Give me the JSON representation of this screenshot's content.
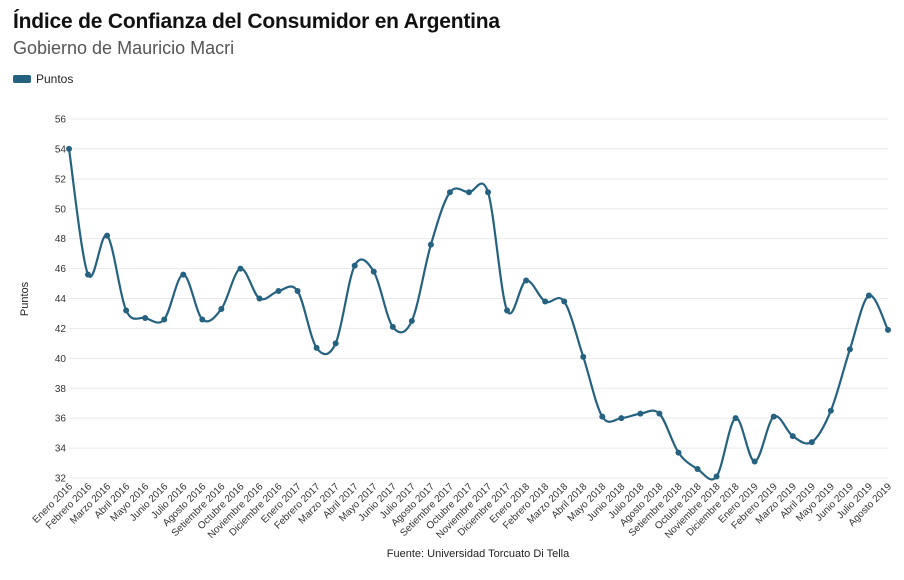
{
  "header": {
    "title": "Índice de Confianza del Consumidor en Argentina",
    "subtitle": "Gobierno de Mauricio Macri"
  },
  "legend": {
    "label": "Puntos",
    "placement": "top-left"
  },
  "footer": {
    "source": "Fuente: Universidad Torcuato Di Tella"
  },
  "colors": {
    "series": "#25627f",
    "grid": "#e9e9e9"
  },
  "chart_data": {
    "type": "line",
    "title": "Índice de Confianza del Consumidor en Argentina",
    "subtitle": "Gobierno de Mauricio Macri",
    "ylabel": "Puntos",
    "xlabel": "",
    "ylim": [
      32,
      56
    ],
    "yticks": [
      32,
      34,
      36,
      38,
      40,
      42,
      44,
      46,
      48,
      50,
      52,
      54,
      56
    ],
    "grid": true,
    "categories": [
      "Enero 2016",
      "Febrero 2016",
      "Marzo 2016",
      "Abril 2016",
      "Mayo 2016",
      "Junio 2016",
      "Julio 2016",
      "Agosto 2016",
      "Setiembre 2016",
      "Octubre 2016",
      "Noviembre 2016",
      "Diciembre 2016",
      "Enero 2017",
      "Febrero 2017",
      "Marzo 2017",
      "Abril 2017",
      "Mayo 2017",
      "Junio 2017",
      "Julio 2017",
      "Agosto 2017",
      "Setiembre 2017",
      "Octubre 2017",
      "Noviembre 2017",
      "Diciembre 2017",
      "Enero 2018",
      "Febrero 2018",
      "Marzo 2018",
      "Abril 2018",
      "Mayo 2018",
      "Junio 2018",
      "Julio 2018",
      "Agosto 2018",
      "Setiembre 2018",
      "Octubre 2018",
      "Noviembre 2018",
      "Diciembre 2018",
      "Enero 2019",
      "Febrero 2019",
      "Marzo 2019",
      "Abril 2019",
      "Mayo 2019",
      "Junio 2019",
      "Julio 2019",
      "Agosto 2019"
    ],
    "series": [
      {
        "name": "Puntos",
        "values": [
          54.0,
          45.6,
          48.2,
          43.2,
          42.7,
          42.6,
          45.6,
          42.6,
          43.3,
          46.0,
          44.0,
          44.5,
          44.5,
          40.7,
          41.0,
          46.2,
          45.8,
          42.1,
          42.5,
          47.6,
          51.1,
          51.1,
          51.1,
          43.2,
          45.2,
          43.8,
          43.8,
          40.1,
          36.1,
          36.0,
          36.3,
          36.3,
          33.7,
          32.6,
          32.1,
          36.0,
          33.1,
          36.1,
          34.8,
          34.4,
          36.5,
          40.6,
          44.2,
          41.9
        ]
      }
    ]
  }
}
